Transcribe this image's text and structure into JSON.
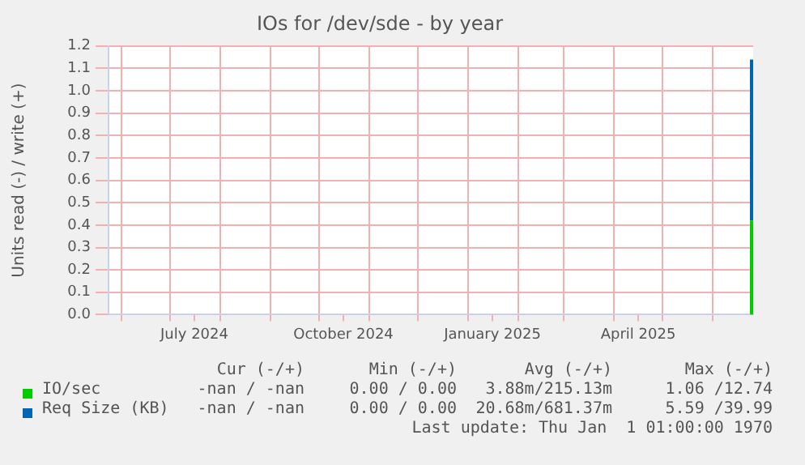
{
  "chart_data": {
    "type": "line",
    "title": "IOs for /dev/sde - by year",
    "ylabel": "Units read (-) / write (+)",
    "series": [
      {
        "name": "IO/sec",
        "color": "#00cc00",
        "x": [
          "2025-06-25",
          "2025-06-25"
        ],
        "values": [
          0,
          0.42
        ]
      },
      {
        "name": "Req Size (KB)",
        "color": "#0066b3",
        "x": [
          "2025-06-25",
          "2025-06-25"
        ],
        "values": [
          0.42,
          1.14
        ]
      }
    ],
    "xlim": [
      "2024-05-24",
      "2025-06-26"
    ],
    "xticks": [
      {
        "value": "2024-06-01",
        "label": null
      },
      {
        "value": "2024-07-01",
        "label": null
      },
      {
        "value": "2024-07-16",
        "label": "July 2024"
      },
      {
        "value": "2024-08-01",
        "label": null
      },
      {
        "value": "2024-09-01",
        "label": null
      },
      {
        "value": "2024-10-01",
        "label": null
      },
      {
        "value": "2024-10-16",
        "label": "October 2024"
      },
      {
        "value": "2024-11-01",
        "label": null
      },
      {
        "value": "2024-12-01",
        "label": null
      },
      {
        "value": "2025-01-01",
        "label": null
      },
      {
        "value": "2025-01-16",
        "label": "January 2025"
      },
      {
        "value": "2025-02-01",
        "label": null
      },
      {
        "value": "2025-03-01",
        "label": null
      },
      {
        "value": "2025-04-01",
        "label": null
      },
      {
        "value": "2025-04-16",
        "label": "April 2025"
      },
      {
        "value": "2025-05-01",
        "label": null
      },
      {
        "value": "2025-06-01",
        "label": null
      }
    ],
    "ylim": [
      0,
      1.2
    ],
    "yticks": [
      {
        "value": 0,
        "label": "0.0"
      },
      0.1,
      0.2,
      0.3,
      0.4,
      0.5,
      0.6,
      0.7,
      0.8,
      0.9,
      {
        "value": 1,
        "label": "1.0"
      },
      1.1,
      1.2
    ],
    "grid": true,
    "legend": "bottom",
    "marker": "none",
    "line_style": "solid",
    "annotations": [
      "Cur (-/+)",
      "Min (-/+)",
      "Avg (-/+)",
      "Max (-/+)",
      "-nan / -nan",
      "0.00 / 0.00",
      "3.88m/215.13m",
      "1.06 /12.74",
      "-nan / -nan",
      "0.00 / 0.00",
      "20.68m/681.37m",
      "5.59 /39.99",
      "Last update: Thu Jan  1 01:00:00 1970"
    ]
  }
}
